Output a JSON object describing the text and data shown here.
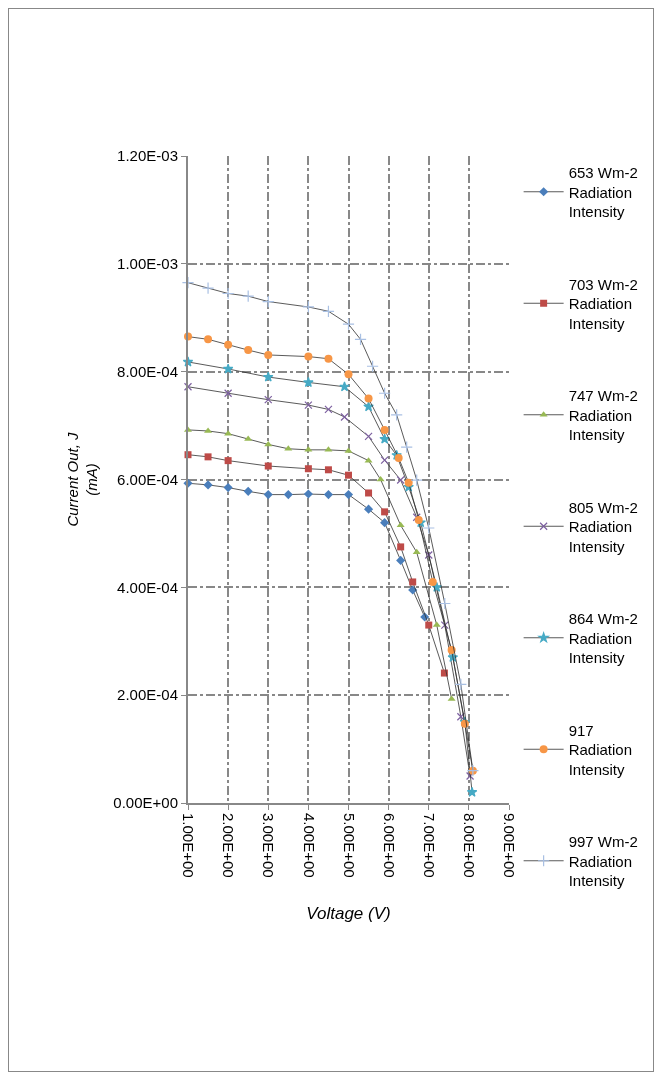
{
  "chart_data": {
    "type": "line",
    "xlabel": "Voltage (V)",
    "ylabel": "Current Out, J (mA)",
    "xlim": [
      1,
      9
    ],
    "xticks": [
      {
        "value": 1,
        "label": "1.00E+00"
      },
      {
        "value": 2,
        "label": "2.00E+00"
      },
      {
        "value": 3,
        "label": "3.00E+00"
      },
      {
        "value": 4,
        "label": "4.00E+00"
      },
      {
        "value": 5,
        "label": "5.00E+00"
      },
      {
        "value": 6,
        "label": "6.00E+00"
      },
      {
        "value": 7,
        "label": "7.00E+00"
      },
      {
        "value": 8,
        "label": "8.00E+00"
      },
      {
        "value": 9,
        "label": "9.00E+00"
      }
    ],
    "ylim": [
      0,
      0.0012
    ],
    "yticks": [
      {
        "value": 0,
        "label": "0.00E+00"
      },
      {
        "value": 0.0002,
        "label": "2.00E-04"
      },
      {
        "value": 0.0004,
        "label": "4.00E-04"
      },
      {
        "value": 0.0006,
        "label": "6.00E-04"
      },
      {
        "value": 0.0008,
        "label": "8.00E-04"
      },
      {
        "value": 0.001,
        "label": "1.00E-03"
      },
      {
        "value": 0.0012,
        "label": "1.20E-03"
      }
    ],
    "grid": true,
    "legend": "right",
    "line_style": "solid",
    "series": [
      {
        "name": "653 Wm-2 Radiation Intensity",
        "color": "#4a7ebb",
        "marker": "diamond",
        "x": [
          1.0,
          1.5,
          2.0,
          2.5,
          3.0,
          3.5,
          4.0,
          4.5,
          5.0,
          5.5,
          5.9,
          6.3,
          6.6,
          6.9
        ],
        "values": [
          0.000593,
          0.00059,
          0.000585,
          0.000578,
          0.000572,
          0.000572,
          0.000573,
          0.000572,
          0.000572,
          0.000545,
          0.00052,
          0.00045,
          0.000395,
          0.000345
        ]
      },
      {
        "name": "703 Wm-2 Radiation Intensity",
        "color": "#be4b48",
        "marker": "square",
        "x": [
          1.0,
          1.5,
          2.0,
          3.0,
          4.0,
          4.5,
          5.0,
          5.5,
          5.9,
          6.3,
          6.6,
          7.0,
          7.39
        ],
        "values": [
          0.000646,
          0.000642,
          0.000635,
          0.000625,
          0.00062,
          0.000618,
          0.000608,
          0.000575,
          0.00054,
          0.000475,
          0.00041,
          0.00033,
          0.000241
        ]
      },
      {
        "name": "747 Wm-2 Radiation Intensity",
        "color": "#98b954",
        "marker": "triangle",
        "x": [
          1.0,
          1.5,
          2.0,
          2.5,
          3.0,
          3.5,
          4.0,
          4.5,
          5.0,
          5.5,
          5.8,
          6.3,
          6.7,
          7.2,
          7.57
        ],
        "values": [
          0.000692,
          0.00069,
          0.000685,
          0.000675,
          0.000665,
          0.000657,
          0.000655,
          0.000655,
          0.000653,
          0.000635,
          0.0006,
          0.000515,
          0.000465,
          0.00033,
          0.000193
        ]
      },
      {
        "name": "805 Wm-2 Radiation Intensity",
        "color": "#7d60a0",
        "marker": "x",
        "x": [
          1.0,
          2.0,
          3.0,
          4.0,
          4.5,
          4.9,
          5.5,
          5.9,
          6.3,
          6.7,
          7.0,
          7.4,
          7.8,
          8.03
        ],
        "values": [
          0.000772,
          0.00076,
          0.000748,
          0.000738,
          0.00073,
          0.000716,
          0.00068,
          0.000636,
          0.000599,
          0.00053,
          0.00046,
          0.00033,
          0.00016,
          5e-05
        ]
      },
      {
        "name": "864 Wm-2 Radiation Intensity",
        "color": "#46aac5",
        "marker": "star",
        "x": [
          1.0,
          2.0,
          3.0,
          4.0,
          4.9,
          5.5,
          5.9,
          6.2,
          6.5,
          6.8,
          7.2,
          7.6,
          7.9,
          8.08
        ],
        "values": [
          0.000818,
          0.000805,
          0.00079,
          0.00078,
          0.000772,
          0.000735,
          0.000675,
          0.000645,
          0.000586,
          0.00052,
          0.0004,
          0.00027,
          0.00015,
          2e-05
        ]
      },
      {
        "name": "917 Radiation Intensity",
        "color": "#f79646",
        "marker": "circle",
        "x": [
          1.0,
          1.5,
          2.0,
          2.5,
          3.0,
          4.0,
          4.5,
          5.0,
          5.5,
          5.9,
          6.25,
          6.5,
          6.75,
          7.1,
          7.57,
          7.9,
          8.1
        ],
        "values": [
          0.000865,
          0.00086,
          0.00085,
          0.00084,
          0.000831,
          0.000828,
          0.000824,
          0.000795,
          0.00075,
          0.000692,
          0.00064,
          0.000594,
          0.000525,
          0.00041,
          0.000284,
          0.000147,
          6e-05
        ]
      },
      {
        "name": "997 Wm-2 Radiation Intensity",
        "color": "#a9c0e3",
        "marker": "cross",
        "x": [
          1.0,
          1.5,
          2.0,
          2.5,
          3.0,
          4.0,
          4.5,
          5.0,
          5.3,
          5.6,
          5.9,
          6.2,
          6.45,
          6.7,
          7.0,
          7.4,
          7.8,
          8.1
        ],
        "values": [
          0.000965,
          0.000955,
          0.000945,
          0.00094,
          0.00093,
          0.00092,
          0.000912,
          0.000888,
          0.00086,
          0.00081,
          0.00076,
          0.00072,
          0.00066,
          0.000599,
          0.00051,
          0.00037,
          0.00022,
          6e-05
        ]
      }
    ]
  }
}
